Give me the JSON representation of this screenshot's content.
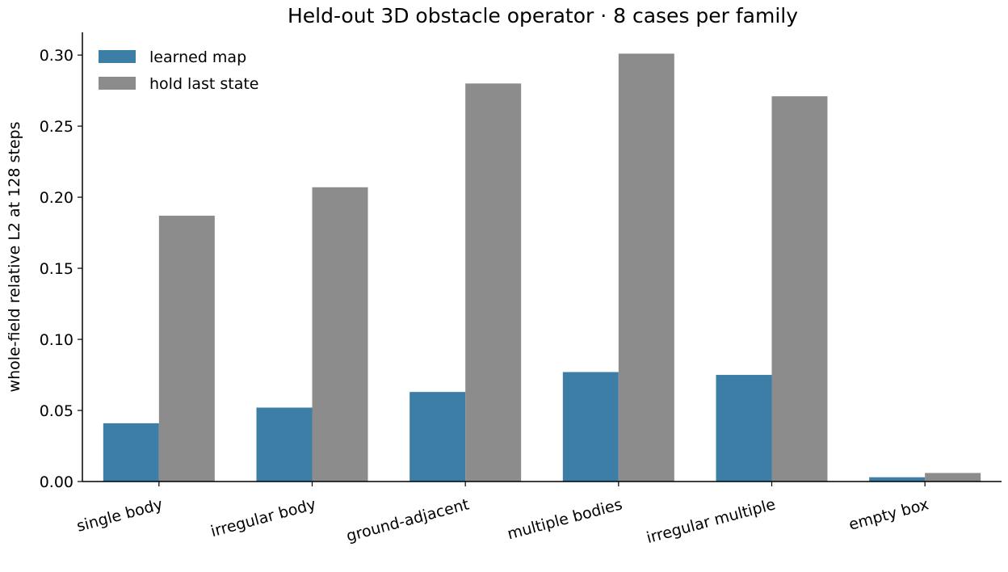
{
  "chart_data": {
    "type": "bar",
    "title": "Held-out 3D obstacle operator · 8 cases per family",
    "xlabel": "",
    "ylabel": "whole-field relative L2 at 128 steps",
    "categories": [
      "single body",
      "irregular body",
      "ground-adjacent",
      "multiple bodies",
      "irregular multiple",
      "empty box"
    ],
    "series": [
      {
        "name": "learned map",
        "color": "#3d7ea6",
        "values": [
          0.041,
          0.052,
          0.063,
          0.077,
          0.075,
          0.003
        ]
      },
      {
        "name": "hold last state",
        "color": "#8c8c8c",
        "values": [
          0.187,
          0.207,
          0.28,
          0.301,
          0.271,
          0.006
        ]
      }
    ],
    "ylim": [
      0,
      0.316
    ],
    "yticks": [
      0.0,
      0.05,
      0.1,
      0.15,
      0.2,
      0.25,
      0.3
    ],
    "ytick_labels": [
      "0.00",
      "0.05",
      "0.10",
      "0.15",
      "0.20",
      "0.25",
      "0.30"
    ],
    "grid": false,
    "legend_position": "top-left"
  }
}
